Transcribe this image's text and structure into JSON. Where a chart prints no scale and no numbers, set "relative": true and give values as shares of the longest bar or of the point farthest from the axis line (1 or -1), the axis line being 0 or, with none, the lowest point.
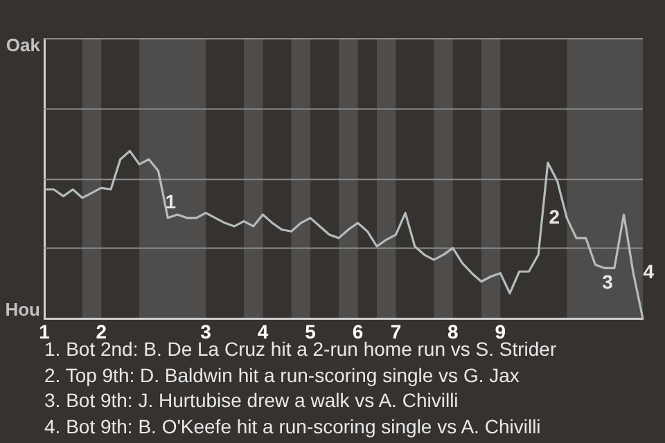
{
  "chart_data": {
    "type": "line",
    "relative": true,
    "categories": [
      "1",
      null,
      null,
      null,
      null,
      null,
      "2",
      null,
      null,
      null,
      null,
      null,
      null,
      null,
      null,
      null,
      null,
      "3",
      null,
      null,
      null,
      null,
      null,
      "4",
      null,
      null,
      null,
      null,
      "5",
      null,
      null,
      null,
      null,
      "6",
      null,
      null,
      null,
      "7",
      null,
      null,
      null,
      null,
      null,
      "8",
      null,
      null,
      null,
      null,
      "9",
      null,
      null,
      null,
      null,
      null,
      null,
      null,
      null,
      null,
      null,
      null,
      null,
      null,
      null,
      null
    ],
    "series": [
      {
        "color": "#b4bcbc",
        "values": [
          0.77,
          0.77,
          0.73,
          0.77,
          0.72,
          0.75,
          0.78,
          0.77,
          0.95,
          1,
          0.92,
          0.95,
          0.88,
          0.6,
          0.62,
          0.6,
          0.6,
          0.63,
          0.6,
          0.57,
          0.55,
          0.58,
          0.55,
          0.62,
          0.57,
          0.53,
          0.52,
          0.57,
          0.6,
          0.55,
          0.5,
          0.48,
          0.53,
          0.57,
          0.52,
          0.43,
          0.47,
          0.5,
          0.63,
          0.43,
          0.38,
          0.35,
          0.38,
          0.42,
          0.33,
          0.27,
          0.22,
          0.25,
          0.27,
          0.15,
          0.28,
          0.28,
          0.38,
          0.93,
          0.82,
          0.6,
          0.48,
          0.48,
          0.32,
          0.3,
          0.3,
          0.62,
          0.27,
          0
        ]
      }
    ],
    "ref_lines": [
      {
        "axis": "y",
        "value": 0.42,
        "color": "#8c8c8c"
      },
      {
        "axis": "y",
        "value": 0.83,
        "color": "#8c8c8c"
      },
      {
        "axis": "y",
        "value": 1.25,
        "color": "#8c8c8c"
      },
      {
        "axis": "y",
        "value": 1.67,
        "color": "#8c8c8c"
      }
    ],
    "legend": false,
    "marker": "none",
    "line_style": "solid",
    "annotations": [
      "Oak",
      "Hou",
      "1",
      "2",
      "3",
      "4",
      "1. Bot 2nd: B. De La Cruz hit a 2-run home run vs S. Strider",
      "2. Top 9th: D. Baldwin hit a run-scoring single vs G. Jax",
      "3. Bot 9th: J. Hurtubise drew a walk vs A. Chivilli",
      "4. Bot 9th: B. O'Keefe hit a run-scoring single vs A. Chivilli"
    ]
  }
}
